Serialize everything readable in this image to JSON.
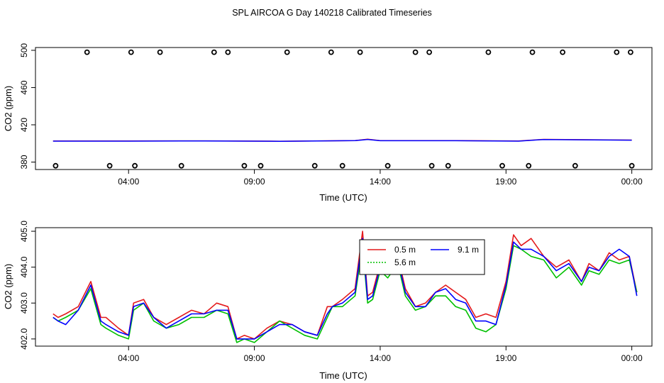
{
  "figure": {
    "title": "SPL AIRCOA G  Day 140218  Calibrated Timeseries"
  },
  "colors": {
    "red": "#e41a1c",
    "green": "#00c000",
    "blue": "#0000ff",
    "axis": "#000000"
  },
  "chart_data": [
    {
      "type": "scatter",
      "title": "",
      "xlabel": "Time (UTC)",
      "ylabel": "CO2 (ppm)",
      "x_unit": "hours",
      "xlim": [
        0.3,
        24.8
      ],
      "ylim": [
        372,
        503
      ],
      "x_ticks": [
        4,
        9,
        14,
        19,
        24
      ],
      "x_tick_labels": [
        "04:00",
        "09:00",
        "14:00",
        "19:00",
        "00:00"
      ],
      "y_ticks": [
        380,
        420,
        460,
        500
      ],
      "y_tick_labels": [
        "380",
        "420",
        "460",
        "500"
      ],
      "grid": false,
      "outliers_high": {
        "y": 498,
        "x": [
          2.35,
          4.1,
          5.25,
          7.4,
          7.95,
          10.3,
          12.05,
          13.2,
          15.4,
          15.95,
          18.3,
          20.05,
          21.25,
          23.4,
          23.95
        ]
      },
      "outliers_low": {
        "y": 376,
        "x": [
          1.1,
          3.25,
          4.25,
          6.1,
          8.6,
          9.25,
          11.4,
          12.5,
          14.3,
          16.05,
          16.7,
          18.85,
          19.9,
          21.75,
          24.0
        ]
      },
      "series": [
        {
          "color": "#e41a1c",
          "x": [
            1,
            4,
            7,
            10,
            13,
            13.5,
            14,
            17,
            19.5,
            20.5,
            24
          ],
          "y": [
            402.6,
            402.6,
            402.8,
            402.4,
            403.1,
            404.5,
            403.0,
            403.0,
            402.6,
            404.4,
            403.6
          ]
        },
        {
          "color": "#0000ff",
          "x": [
            1,
            4,
            7,
            10,
            13,
            13.5,
            14,
            17,
            19.5,
            20.5,
            24
          ],
          "y": [
            402.5,
            402.5,
            402.7,
            402.3,
            403.0,
            404.3,
            402.9,
            402.9,
            402.5,
            404.2,
            403.5
          ]
        }
      ]
    },
    {
      "type": "line",
      "title": "",
      "xlabel": "Time (UTC)",
      "ylabel": "CO2 (ppm)",
      "xlim": [
        0.3,
        24.8
      ],
      "ylim": [
        401.8,
        405.1
      ],
      "x_ticks": [
        4,
        9,
        14,
        19,
        24
      ],
      "x_tick_labels": [
        "04:00",
        "09:00",
        "14:00",
        "19:00",
        "00:00"
      ],
      "y_ticks": [
        402.0,
        403.0,
        404.0,
        405.0
      ],
      "y_tick_labels": [
        "402.0",
        "403.0",
        "404.0",
        "405.0"
      ],
      "grid": false,
      "legend": {
        "placement": "top-right",
        "entries": [
          "0.5 m",
          "5.6 m",
          "9.1 m"
        ]
      },
      "series": [
        {
          "name": "0.5 m",
          "color": "#e41a1c",
          "x": [
            1.0,
            1.2,
            1.5,
            2.0,
            2.5,
            2.9,
            3.1,
            3.6,
            4.0,
            4.2,
            4.6,
            5.0,
            5.5,
            6.0,
            6.5,
            7.0,
            7.5,
            7.95,
            8.3,
            8.6,
            9.0,
            9.5,
            10.0,
            10.5,
            11.0,
            11.5,
            11.9,
            12.1,
            12.5,
            13.0,
            13.3,
            13.5,
            13.7,
            14.0,
            14.3,
            14.7,
            15.0,
            15.4,
            15.8,
            16.2,
            16.6,
            17.0,
            17.4,
            17.8,
            18.2,
            18.6,
            19.0,
            19.3,
            19.6,
            20.0,
            20.5,
            21.0,
            21.5,
            22.0,
            22.3,
            22.7,
            23.1,
            23.5,
            23.9,
            24.2
          ],
          "y": [
            402.7,
            402.6,
            402.7,
            402.9,
            403.6,
            402.6,
            402.6,
            402.3,
            402.1,
            403.0,
            403.1,
            402.6,
            402.4,
            402.6,
            402.8,
            402.7,
            403.0,
            402.9,
            402.0,
            402.1,
            402.0,
            402.3,
            402.5,
            402.4,
            402.2,
            402.1,
            402.9,
            402.9,
            403.1,
            403.4,
            405.0,
            403.2,
            403.3,
            404.1,
            403.8,
            404.3,
            403.4,
            402.9,
            403.0,
            403.3,
            403.5,
            403.3,
            403.1,
            402.6,
            402.7,
            402.6,
            403.6,
            404.9,
            404.6,
            404.8,
            404.3,
            404.0,
            404.2,
            403.6,
            404.1,
            403.9,
            404.4,
            404.2,
            404.3,
            403.3
          ]
        },
        {
          "name": "5.6 m",
          "color": "#00c000",
          "x": [
            1.0,
            1.2,
            1.5,
            2.0,
            2.5,
            2.9,
            3.1,
            3.6,
            4.0,
            4.2,
            4.6,
            5.0,
            5.5,
            6.0,
            6.5,
            7.0,
            7.5,
            7.95,
            8.3,
            8.6,
            9.0,
            9.5,
            10.0,
            10.5,
            11.0,
            11.5,
            11.9,
            12.1,
            12.5,
            13.0,
            13.3,
            13.5,
            13.7,
            14.0,
            14.3,
            14.7,
            15.0,
            15.4,
            15.8,
            16.2,
            16.6,
            17.0,
            17.4,
            17.8,
            18.2,
            18.6,
            19.0,
            19.3,
            19.6,
            20.0,
            20.5,
            21.0,
            21.5,
            22.0,
            22.3,
            22.7,
            23.1,
            23.5,
            23.9,
            24.2
          ],
          "y": [
            402.6,
            402.5,
            402.6,
            402.8,
            403.4,
            402.4,
            402.3,
            402.1,
            402.0,
            402.8,
            403.0,
            402.5,
            402.3,
            402.4,
            402.6,
            402.6,
            402.8,
            402.7,
            401.9,
            402.0,
            401.9,
            402.2,
            402.5,
            402.3,
            402.1,
            402.0,
            402.6,
            402.9,
            402.9,
            403.2,
            404.6,
            403.0,
            403.1,
            403.9,
            403.7,
            404.1,
            403.2,
            402.8,
            402.9,
            403.2,
            403.2,
            402.9,
            402.8,
            402.3,
            402.2,
            402.4,
            403.4,
            404.6,
            404.5,
            404.3,
            404.2,
            403.7,
            404.0,
            403.5,
            403.9,
            403.8,
            404.2,
            404.1,
            404.2,
            403.3
          ]
        },
        {
          "name": "9.1 m",
          "color": "#0000ff",
          "x": [
            1.0,
            1.2,
            1.5,
            2.0,
            2.5,
            2.9,
            3.1,
            3.6,
            4.0,
            4.2,
            4.6,
            5.0,
            5.5,
            6.0,
            6.5,
            7.0,
            7.5,
            7.95,
            8.3,
            8.6,
            9.0,
            9.5,
            10.0,
            10.5,
            11.0,
            11.5,
            11.9,
            12.1,
            12.5,
            13.0,
            13.3,
            13.5,
            13.7,
            14.0,
            14.3,
            14.7,
            15.0,
            15.4,
            15.8,
            16.2,
            16.6,
            17.0,
            17.4,
            17.8,
            18.2,
            18.6,
            19.0,
            19.3,
            19.6,
            20.0,
            20.5,
            21.0,
            21.5,
            22.0,
            22.3,
            22.7,
            23.1,
            23.5,
            23.9,
            24.2
          ],
          "y": [
            402.6,
            402.5,
            402.4,
            402.8,
            403.5,
            402.5,
            402.4,
            402.2,
            402.1,
            402.9,
            403.0,
            402.6,
            402.3,
            402.5,
            402.7,
            402.7,
            402.8,
            402.8,
            402.0,
            402.0,
            402.0,
            402.2,
            402.4,
            402.4,
            402.2,
            402.1,
            402.7,
            402.9,
            403.0,
            403.3,
            404.8,
            403.1,
            403.2,
            404.0,
            403.8,
            404.2,
            403.3,
            402.9,
            402.9,
            403.3,
            403.4,
            403.1,
            403.0,
            402.5,
            402.5,
            402.4,
            403.5,
            404.7,
            404.5,
            404.5,
            404.3,
            403.9,
            404.1,
            403.6,
            404.0,
            403.9,
            404.3,
            404.5,
            404.3,
            403.2
          ]
        }
      ]
    }
  ]
}
